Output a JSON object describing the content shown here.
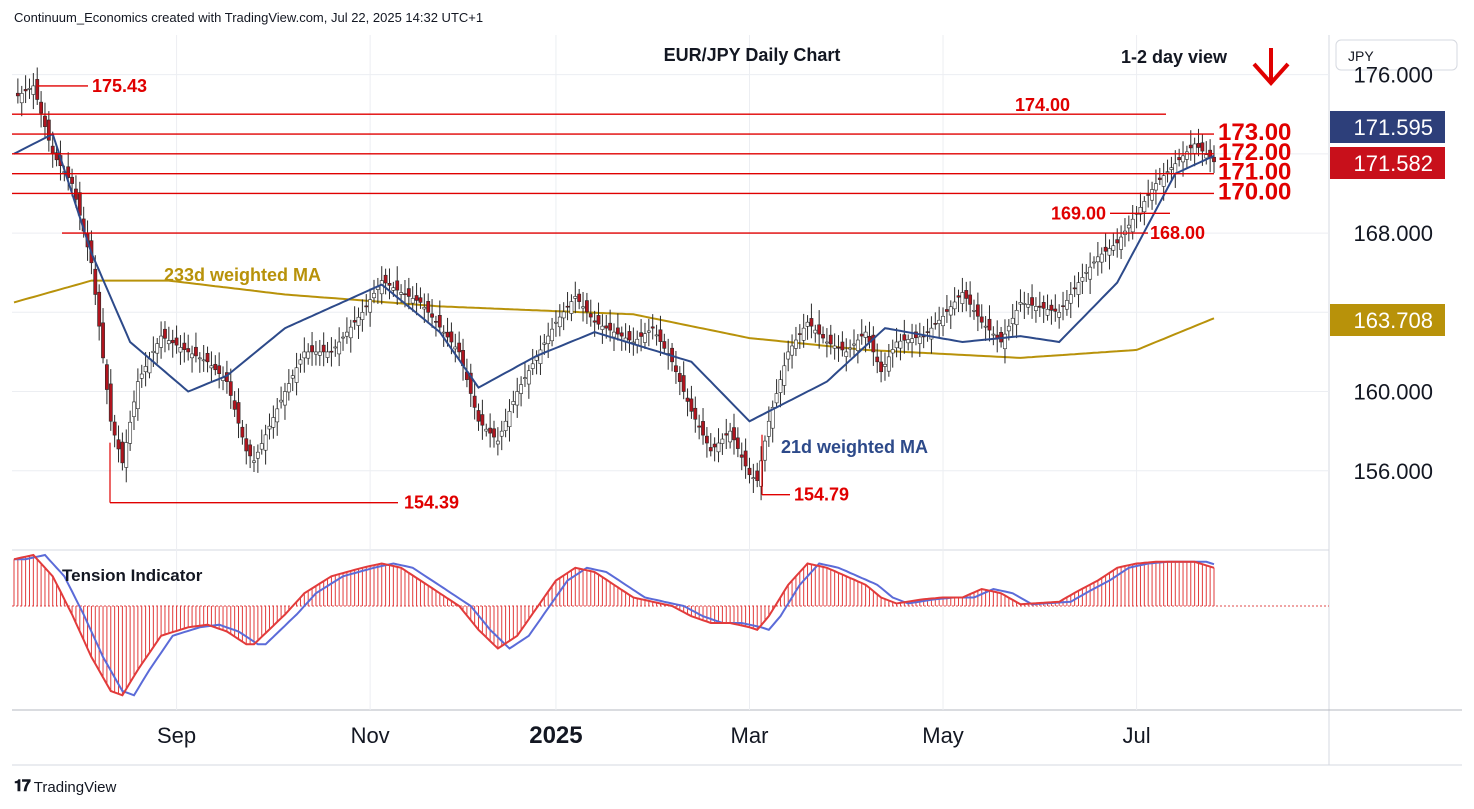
{
  "header": {
    "attribution": "Continuum_Economics created with TradingView.com, Jul 22, 2025 14:32 UTC+1"
  },
  "footer": {
    "brand": "TradingView"
  },
  "colors": {
    "support_resistance": "#e00000",
    "ma21": "#2d4a8a",
    "ma233": "#b8920a",
    "candle_up": "#ffffff",
    "candle_down": "#b0141e",
    "tension_fast": "#e23b3b",
    "tension_slow": "#5b6bd8",
    "price_tag_last": "#2d3f7a",
    "price_tag_close": "#c8101b"
  },
  "chart_data": {
    "type": "candlestick",
    "title": "EUR/JPY Daily Chart",
    "view_label": "1-2 day view",
    "view_direction": "down",
    "currency": "JPY",
    "x_axis_labels": [
      "Sep",
      "Nov",
      "2025",
      "Mar",
      "May",
      "Jul"
    ],
    "y_axis_ticks": [
      156.0,
      160.0,
      164.0,
      168.0,
      172.0,
      176.0
    ],
    "y_axis_tick_labels": [
      "156.000",
      "160.000",
      "168.000",
      "176.000"
    ],
    "ylim": [
      152.0,
      178.0
    ],
    "price_tags": [
      {
        "label": "171.595",
        "value": 171.595,
        "kind": "last"
      },
      {
        "label": "171.582",
        "value": 171.582,
        "kind": "close"
      },
      {
        "label": "163.708",
        "value": 163.708,
        "kind": "ma233"
      }
    ],
    "levels": [
      {
        "label": "175.43",
        "value": 175.43,
        "kind": "high"
      },
      {
        "label": "174.00",
        "value": 174.0,
        "kind": "resistance"
      },
      {
        "label": "173.00",
        "value": 173.0,
        "kind": "resistance"
      },
      {
        "label": "172.00",
        "value": 172.0,
        "kind": "resistance"
      },
      {
        "label": "171.00",
        "value": 171.0,
        "kind": "support"
      },
      {
        "label": "170.00",
        "value": 170.0,
        "kind": "support"
      },
      {
        "label": "169.00",
        "value": 169.0,
        "kind": "support"
      },
      {
        "label": "168.00",
        "value": 168.0,
        "kind": "support"
      },
      {
        "label": "154.39",
        "value": 154.39,
        "kind": "low"
      },
      {
        "label": "154.79",
        "value": 154.79,
        "kind": "low"
      }
    ],
    "series": [
      {
        "name": "233d weighted MA",
        "kind": "ma233",
        "anchors": [
          [
            0,
            164.5
          ],
          [
            20,
            165.6
          ],
          [
            40,
            165.6
          ],
          [
            70,
            164.9
          ],
          [
            110,
            164.3
          ],
          [
            160,
            163.9
          ],
          [
            190,
            162.7
          ],
          [
            220,
            162.1
          ],
          [
            260,
            161.7
          ],
          [
            290,
            162.1
          ],
          [
            310,
            163.7
          ]
        ]
      },
      {
        "name": "21d weighted MA",
        "kind": "ma21",
        "anchors": [
          [
            0,
            172.0
          ],
          [
            10,
            173.0
          ],
          [
            20,
            167.0
          ],
          [
            30,
            162.5
          ],
          [
            45,
            160.0
          ],
          [
            55,
            160.8
          ],
          [
            70,
            163.2
          ],
          [
            95,
            165.4
          ],
          [
            110,
            163.0
          ],
          [
            120,
            160.2
          ],
          [
            135,
            161.8
          ],
          [
            150,
            163.0
          ],
          [
            175,
            161.5
          ],
          [
            190,
            158.5
          ],
          [
            210,
            160.5
          ],
          [
            225,
            163.2
          ],
          [
            245,
            162.5
          ],
          [
            260,
            162.8
          ],
          [
            270,
            162.5
          ],
          [
            285,
            165.5
          ],
          [
            300,
            171.0
          ],
          [
            310,
            171.9
          ]
        ]
      },
      {
        "name": "EUR/JPY",
        "kind": "price",
        "anchors": [
          [
            0,
            174.8
          ],
          [
            5,
            175.43
          ],
          [
            10,
            172.0
          ],
          [
            15,
            170.5
          ],
          [
            20,
            166.5
          ],
          [
            25,
            158.5
          ],
          [
            28,
            156.4
          ],
          [
            32,
            160.5
          ],
          [
            38,
            162.8
          ],
          [
            45,
            162.0
          ],
          [
            50,
            161.5
          ],
          [
            55,
            160.5
          ],
          [
            60,
            157.0
          ],
          [
            62,
            156.5
          ],
          [
            70,
            160.0
          ],
          [
            75,
            162.0
          ],
          [
            82,
            162.0
          ],
          [
            90,
            164.0
          ],
          [
            95,
            165.6
          ],
          [
            100,
            165.0
          ],
          [
            105,
            164.5
          ],
          [
            115,
            162.0
          ],
          [
            120,
            158.5
          ],
          [
            125,
            157.5
          ],
          [
            130,
            160.0
          ],
          [
            140,
            163.5
          ],
          [
            145,
            164.8
          ],
          [
            150,
            163.5
          ],
          [
            160,
            162.5
          ],
          [
            165,
            163.2
          ],
          [
            170,
            161.5
          ],
          [
            175,
            159.0
          ],
          [
            180,
            157.0
          ],
          [
            185,
            158.0
          ],
          [
            190,
            155.8
          ],
          [
            192,
            155.5
          ],
          [
            195,
            158.5
          ],
          [
            200,
            162.0
          ],
          [
            205,
            163.5
          ],
          [
            210,
            162.5
          ],
          [
            215,
            162.0
          ],
          [
            220,
            163.0
          ],
          [
            224,
            161.0
          ],
          [
            228,
            162.5
          ],
          [
            235,
            162.8
          ],
          [
            240,
            163.8
          ],
          [
            245,
            165.0
          ],
          [
            250,
            163.5
          ],
          [
            255,
            162.5
          ],
          [
            260,
            164.5
          ],
          [
            270,
            164.0
          ],
          [
            275,
            165.5
          ],
          [
            280,
            166.8
          ],
          [
            285,
            167.5
          ],
          [
            290,
            169.0
          ],
          [
            295,
            170.5
          ],
          [
            300,
            171.5
          ],
          [
            305,
            172.5
          ],
          [
            310,
            171.6
          ]
        ]
      }
    ],
    "tension_indicator": {
      "name": "Tension Indicator",
      "anchors": [
        [
          0,
          0.55
        ],
        [
          5,
          0.6
        ],
        [
          10,
          0.35
        ],
        [
          15,
          -0.1
        ],
        [
          20,
          -0.6
        ],
        [
          25,
          -1.0
        ],
        [
          28,
          -1.05
        ],
        [
          32,
          -0.75
        ],
        [
          38,
          -0.35
        ],
        [
          45,
          -0.25
        ],
        [
          50,
          -0.22
        ],
        [
          55,
          -0.3
        ],
        [
          60,
          -0.45
        ],
        [
          62,
          -0.45
        ],
        [
          70,
          -0.1
        ],
        [
          75,
          0.15
        ],
        [
          82,
          0.35
        ],
        [
          90,
          0.45
        ],
        [
          95,
          0.5
        ],
        [
          100,
          0.45
        ],
        [
          105,
          0.3
        ],
        [
          115,
          0.0
        ],
        [
          120,
          -0.28
        ],
        [
          125,
          -0.5
        ],
        [
          130,
          -0.35
        ],
        [
          140,
          0.3
        ],
        [
          145,
          0.45
        ],
        [
          150,
          0.4
        ],
        [
          160,
          0.1
        ],
        [
          165,
          0.05
        ],
        [
          170,
          0.0
        ],
        [
          175,
          -0.12
        ],
        [
          180,
          -0.2
        ],
        [
          185,
          -0.2
        ],
        [
          190,
          -0.25
        ],
        [
          192,
          -0.28
        ],
        [
          195,
          -0.12
        ],
        [
          200,
          0.25
        ],
        [
          205,
          0.5
        ],
        [
          210,
          0.45
        ],
        [
          215,
          0.35
        ],
        [
          220,
          0.25
        ],
        [
          224,
          0.1
        ],
        [
          228,
          0.03
        ],
        [
          235,
          0.08
        ],
        [
          240,
          0.1
        ],
        [
          245,
          0.1
        ],
        [
          250,
          0.2
        ],
        [
          255,
          0.15
        ],
        [
          260,
          0.02
        ],
        [
          270,
          0.05
        ],
        [
          275,
          0.18
        ],
        [
          280,
          0.3
        ],
        [
          285,
          0.45
        ],
        [
          290,
          0.5
        ],
        [
          295,
          0.52
        ],
        [
          300,
          0.52
        ],
        [
          305,
          0.52
        ],
        [
          310,
          0.45
        ]
      ]
    }
  }
}
